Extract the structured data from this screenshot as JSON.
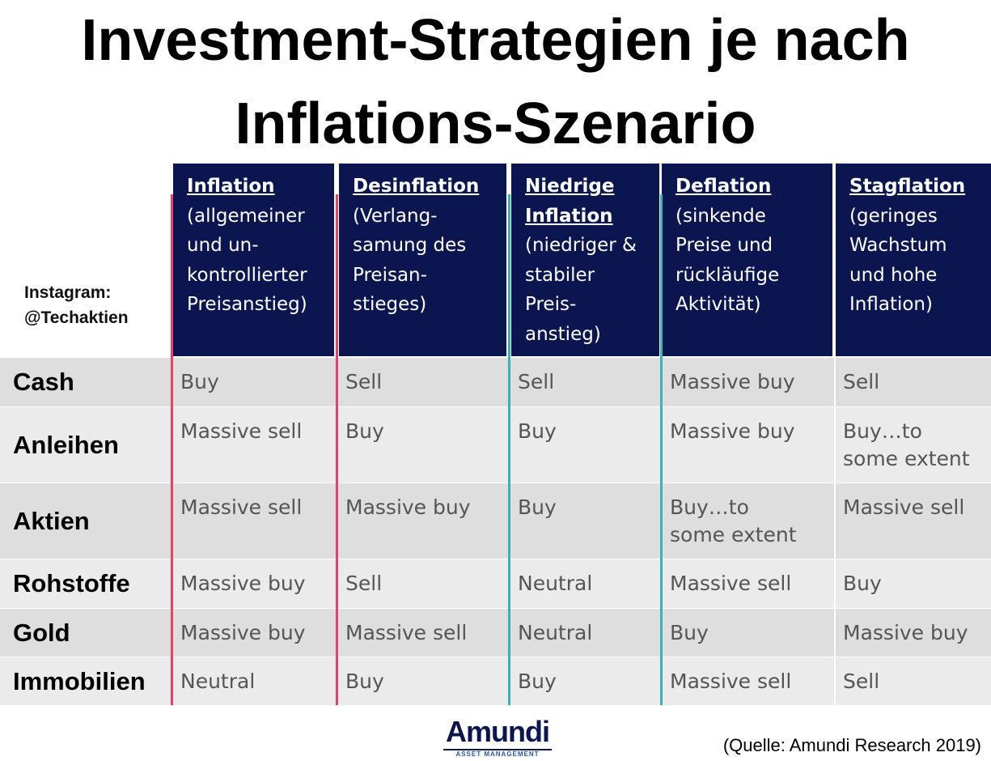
{
  "title": {
    "line1": "Investment-Strategien je nach",
    "line2": "Inflations-Szenario"
  },
  "credit": {
    "line1": "Instagram:",
    "line2": "@Techaktien"
  },
  "columns": [
    {
      "name": "Inflation",
      "desc": "(allgemeiner\nund un-\nkontrollierter\nPreisanstieg)"
    },
    {
      "name": "Desinflation",
      "desc": "(Verlang-\nsamung des\nPreisan-\nstieges)"
    },
    {
      "name": "Niedrige\nInflation",
      "desc": "(niedriger &\nstabiler\nPreis-\nanstieg)"
    },
    {
      "name": "Deflation",
      "desc": "(sinkende\nPreise und\nrückläufige\nAktivität)"
    },
    {
      "name": "Stagflation",
      "desc": "(geringes\nWachstum\nund hohe\nInflation)"
    }
  ],
  "rows": [
    {
      "label": "Cash",
      "cells": [
        "Buy",
        "Sell",
        "Sell",
        "Massive buy",
        "Sell"
      ]
    },
    {
      "label": "Anleihen",
      "cells": [
        "Massive sell",
        "Buy",
        "Buy",
        "Massive buy",
        "Buy…to\nsome extent"
      ]
    },
    {
      "label": "Aktien",
      "cells": [
        "Massive sell",
        "Massive buy",
        "Buy",
        "Buy…to\nsome extent",
        "Massive sell"
      ]
    },
    {
      "label": "Rohstoffe",
      "cells": [
        "Massive buy",
        "Sell",
        "Neutral",
        "Massive sell",
        "Buy"
      ]
    },
    {
      "label": "Gold",
      "cells": [
        "Massive buy",
        "Massive sell",
        "Neutral",
        "Buy",
        "Massive buy"
      ]
    },
    {
      "label": "Immobilien",
      "cells": [
        "Neutral",
        "Buy",
        "Buy",
        "Massive sell",
        "Sell"
      ]
    }
  ],
  "logo": {
    "name": "Amundi",
    "sub": "ASSET MANAGEMENT"
  },
  "source": "(Quelle: Amundi Research 2019)",
  "colors": {
    "header_bg": "#0b1650",
    "line_pink": "#e8406b",
    "line_teal": "#3bb0b5",
    "row_dark": "#dedede",
    "row_light": "#ebebeb"
  }
}
